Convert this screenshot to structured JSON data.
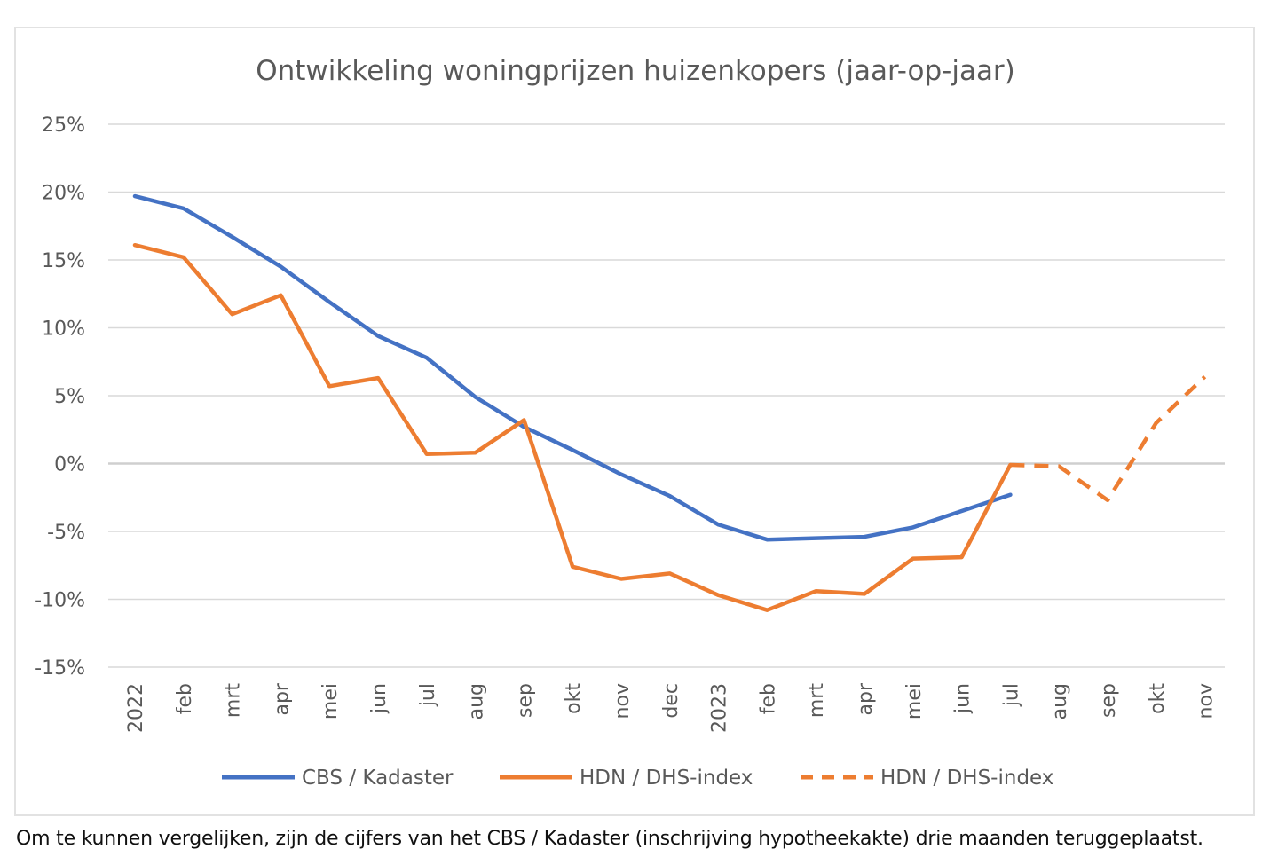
{
  "chart_data": {
    "type": "line",
    "title": "Ontwikkeling woningprijzen huizenkopers (jaar-op-jaar)",
    "categories": [
      "2022",
      "feb",
      "mrt",
      "apr",
      "mei",
      "jun",
      "jul",
      "aug",
      "sep",
      "okt",
      "nov",
      "dec",
      "2023",
      "feb",
      "mrt",
      "apr",
      "mei",
      "jun",
      "jul",
      "aug",
      "sep",
      "okt",
      "nov"
    ],
    "ylim": [
      -15,
      25
    ],
    "yticks": [
      25,
      20,
      15,
      10,
      5,
      0,
      -5,
      -10,
      -15
    ],
    "ytick_labels": [
      "25%",
      "20%",
      "15%",
      "10%",
      "5%",
      "0%",
      "-5%",
      "-10%",
      "-15%"
    ],
    "grid": true,
    "legend_position": "bottom",
    "series": [
      {
        "name": "CBS / Kadaster",
        "color": "#4472C4",
        "style": "solid",
        "values": [
          19.7,
          18.8,
          16.7,
          14.5,
          11.9,
          9.4,
          7.8,
          4.9,
          2.7,
          1.0,
          -0.8,
          -2.4,
          -4.5,
          -5.6,
          -5.5,
          -5.4,
          -4.7,
          -3.5,
          -2.3,
          null,
          null,
          null,
          null
        ]
      },
      {
        "name": "HDN / DHS-index",
        "color": "#ED7D31",
        "style": "solid",
        "values": [
          16.1,
          15.2,
          11.0,
          12.4,
          5.7,
          6.3,
          0.7,
          0.8,
          3.2,
          -7.6,
          -8.5,
          -8.1,
          -9.7,
          -10.8,
          -9.4,
          -9.6,
          -7.0,
          -6.9,
          -0.1,
          null,
          null,
          null,
          null
        ]
      },
      {
        "name": "HDN / DHS-index",
        "color": "#ED7D31",
        "style": "dashed",
        "values": [
          null,
          null,
          null,
          null,
          null,
          null,
          null,
          null,
          null,
          null,
          null,
          null,
          null,
          null,
          null,
          null,
          null,
          null,
          -0.1,
          -0.2,
          -2.7,
          3.0,
          6.4
        ]
      }
    ]
  },
  "footnote": "Om te kunnen vergelijken, zijn de cijfers van het CBS / Kadaster (inschrijving hypotheekakte) drie maanden teruggeplaatst."
}
